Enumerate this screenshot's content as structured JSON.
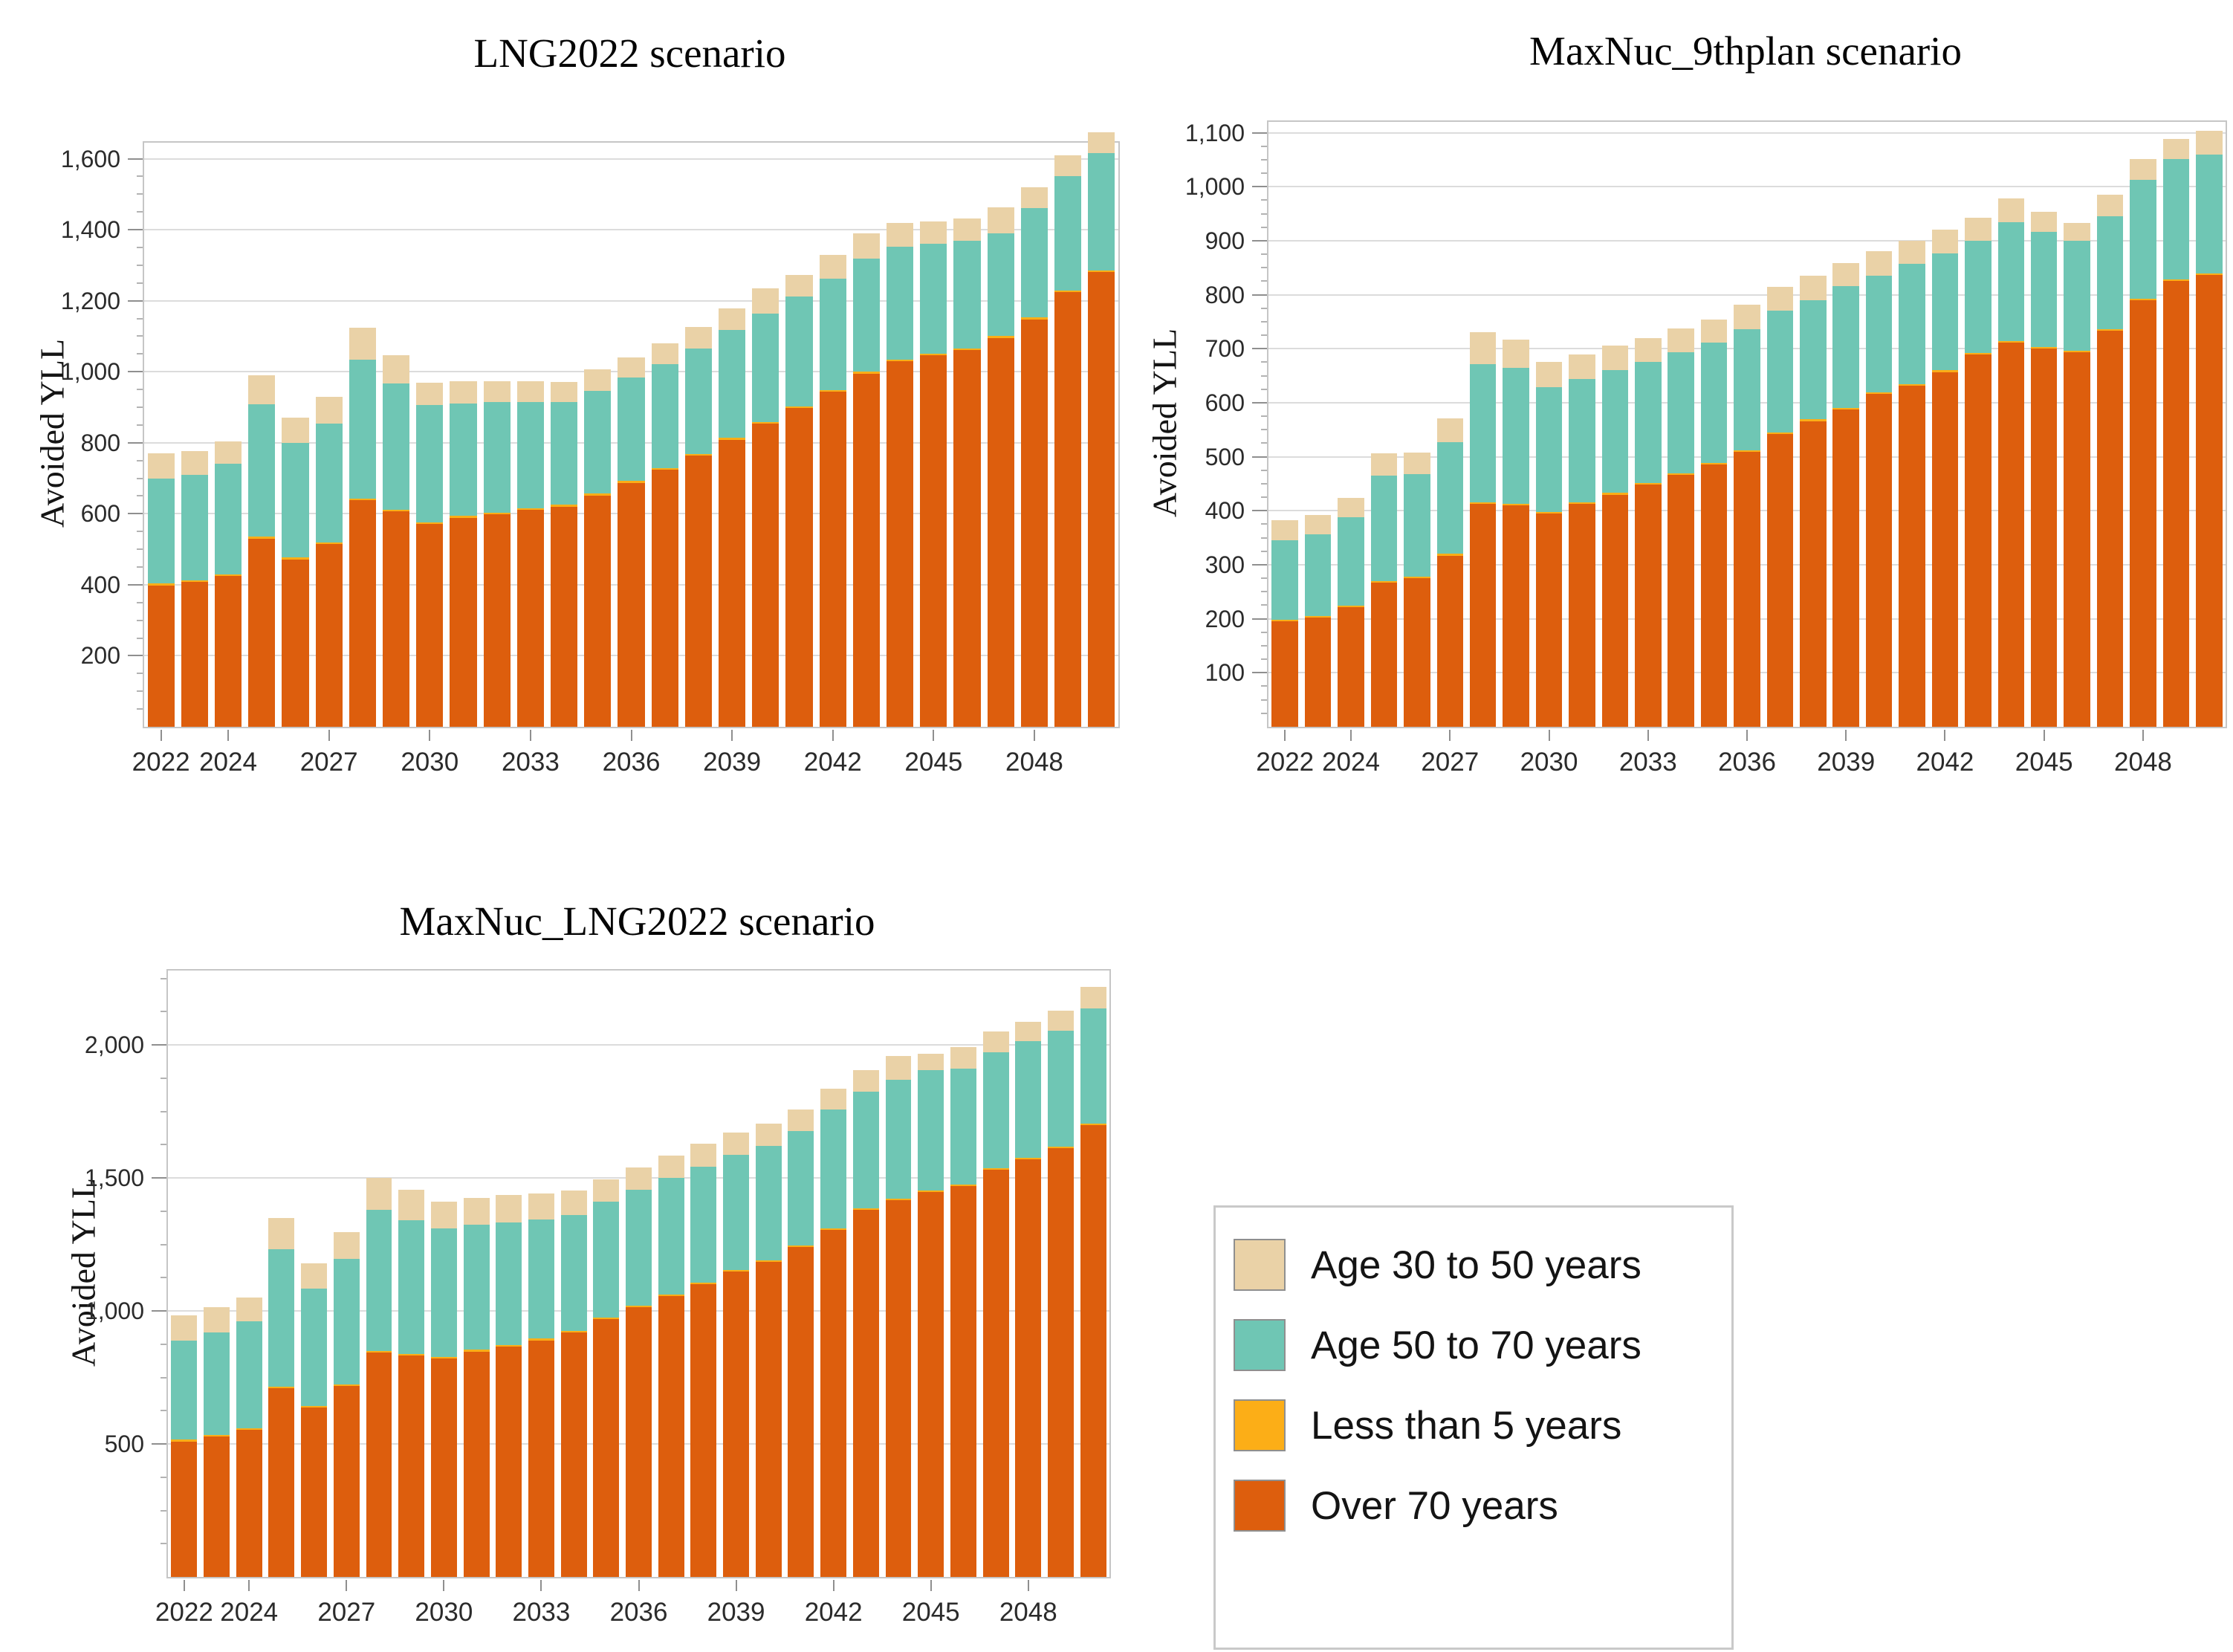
{
  "figure": {
    "background": "#ffffff"
  },
  "legend": {
    "items": [
      {
        "label": "Age 30 to 50 years",
        "color": "#EAD2A7"
      },
      {
        "label": "Age 50 to 70 years",
        "color": "#6FC6B4"
      },
      {
        "label": "Less than 5 years",
        "color": "#FCAE17"
      },
      {
        "label": "Over 70 years",
        "color": "#DD5E0D"
      }
    ]
  },
  "chart_data": [
    {
      "type": "bar",
      "stacked": true,
      "title": "LNG2022 scenario",
      "ylabel": "Avoided YLL",
      "grid": true,
      "legend_position": "none",
      "years": [
        2022,
        2023,
        2024,
        2025,
        2026,
        2027,
        2028,
        2029,
        2030,
        2031,
        2032,
        2033,
        2034,
        2035,
        2036,
        2037,
        2038,
        2039,
        2040,
        2041,
        2042,
        2043,
        2044,
        2045,
        2046,
        2047,
        2048,
        2049,
        2050
      ],
      "xtick_years": [
        2022,
        2024,
        2027,
        2030,
        2033,
        2036,
        2039,
        2042,
        2045,
        2048
      ],
      "ylim": [
        0,
        1645
      ],
      "yticks": [
        200,
        400,
        600,
        800,
        1000,
        1200,
        1400,
        1600
      ],
      "minor_tick_step": 50,
      "series": [
        {
          "name": "Over 70 years",
          "color": "#DD5E0D",
          "values": [
            398,
            408,
            424,
            530,
            472,
            515,
            638,
            606,
            571,
            589,
            598,
            611,
            620,
            652,
            687,
            724,
            763,
            809,
            854,
            898,
            943,
            995,
            1030,
            1046,
            1061,
            1095,
            1148,
            1224,
            1281
          ]
        },
        {
          "name": "Less than 5 years",
          "color": "#FCAE17",
          "values": [
            5,
            5,
            5,
            5,
            5,
            5,
            5,
            5,
            5,
            5,
            5,
            5,
            5,
            5,
            5,
            5,
            5,
            5,
            5,
            5,
            5,
            5,
            5,
            5,
            5,
            5,
            5,
            5,
            5
          ]
        },
        {
          "name": "Age 50 to 70 years",
          "color": "#6FC6B4",
          "values": [
            297,
            297,
            311,
            373,
            323,
            334,
            391,
            355,
            330,
            317,
            311,
            299,
            289,
            289,
            291,
            292,
            297,
            303,
            305,
            308,
            313,
            318,
            317,
            309,
            303,
            290,
            308,
            321,
            330
          ]
        },
        {
          "name": "Age 30 to 50 years",
          "color": "#EAD2A7",
          "values": [
            70,
            67,
            64,
            82,
            71,
            75,
            90,
            81,
            64,
            62,
            60,
            59,
            57,
            61,
            57,
            59,
            61,
            62,
            70,
            61,
            68,
            71,
            67,
            64,
            63,
            73,
            58,
            59,
            58
          ]
        }
      ]
    },
    {
      "type": "bar",
      "stacked": true,
      "title": "MaxNuc_9thplan scenario",
      "ylabel": "Avoided YLL",
      "grid": true,
      "legend_position": "none",
      "years": [
        2022,
        2023,
        2024,
        2025,
        2026,
        2027,
        2028,
        2029,
        2030,
        2031,
        2032,
        2033,
        2034,
        2035,
        2036,
        2037,
        2038,
        2039,
        2040,
        2041,
        2042,
        2043,
        2044,
        2045,
        2046,
        2047,
        2048,
        2049,
        2050
      ],
      "xtick_years": [
        2022,
        2024,
        2027,
        2030,
        2033,
        2036,
        2039,
        2042,
        2045,
        2048
      ],
      "ylim": [
        0,
        1120
      ],
      "yticks": [
        100,
        200,
        300,
        400,
        500,
        600,
        700,
        800,
        900,
        1000,
        1100
      ],
      "minor_tick_step": 25,
      "series": [
        {
          "name": "Over 70 years",
          "color": "#DD5E0D",
          "values": [
            195,
            202,
            222,
            267,
            275,
            317,
            413,
            410,
            395,
            413,
            430,
            448,
            466,
            486,
            509,
            542,
            566,
            587,
            616,
            632,
            657,
            689,
            711,
            700,
            693,
            733,
            790,
            825,
            836
          ]
        },
        {
          "name": "Less than 5 years",
          "color": "#FCAE17",
          "values": [
            3,
            3,
            3,
            3,
            3,
            3,
            3,
            3,
            3,
            3,
            3,
            3,
            3,
            3,
            3,
            3,
            3,
            3,
            3,
            3,
            3,
            3,
            3,
            3,
            3,
            3,
            3,
            3,
            3
          ]
        },
        {
          "name": "Age 50 to 70 years",
          "color": "#6FC6B4",
          "values": [
            147,
            152,
            163,
            195,
            190,
            207,
            256,
            251,
            231,
            228,
            228,
            224,
            224,
            223,
            224,
            225,
            221,
            226,
            216,
            222,
            217,
            208,
            221,
            213,
            204,
            209,
            219,
            223,
            221
          ]
        },
        {
          "name": "Age 30 to 50 years",
          "color": "#EAD2A7",
          "values": [
            37,
            35,
            36,
            41,
            40,
            44,
            59,
            53,
            46,
            46,
            45,
            44,
            44,
            42,
            45,
            45,
            45,
            42,
            45,
            43,
            43,
            43,
            43,
            38,
            33,
            40,
            39,
            38,
            43
          ]
        }
      ]
    },
    {
      "type": "bar",
      "stacked": true,
      "title": "MaxNuc_LNG2022 scenario",
      "ylabel": "Avoided YLL",
      "grid": true,
      "legend_position": "none",
      "years": [
        2022,
        2023,
        2024,
        2025,
        2026,
        2027,
        2028,
        2029,
        2030,
        2031,
        2032,
        2033,
        2034,
        2035,
        2036,
        2037,
        2038,
        2039,
        2040,
        2041,
        2042,
        2043,
        2044,
        2045,
        2046,
        2047,
        2048,
        2049,
        2050
      ],
      "xtick_years": [
        2022,
        2024,
        2027,
        2030,
        2033,
        2036,
        2039,
        2042,
        2045,
        2048
      ],
      "ylim": [
        0,
        2280
      ],
      "yticks": [
        500,
        1000,
        1500,
        2000
      ],
      "minor_tick_step": 125,
      "series": [
        {
          "name": "Over 70 years",
          "color": "#DD5E0D",
          "values": [
            510,
            527,
            552,
            710,
            638,
            718,
            845,
            832,
            822,
            848,
            865,
            890,
            920,
            970,
            1015,
            1056,
            1102,
            1148,
            1185,
            1241,
            1306,
            1380,
            1417,
            1448,
            1469,
            1532,
            1570,
            1611,
            1700
          ]
        },
        {
          "name": "Less than 5 years",
          "color": "#FCAE17",
          "values": [
            6,
            6,
            6,
            6,
            6,
            6,
            6,
            6,
            6,
            6,
            6,
            6,
            6,
            6,
            6,
            6,
            6,
            6,
            6,
            6,
            6,
            6,
            6,
            6,
            6,
            6,
            6,
            6,
            6
          ]
        },
        {
          "name": "Age 50 to 70 years",
          "color": "#6FC6B4",
          "values": [
            374,
            387,
            404,
            516,
            441,
            473,
            529,
            502,
            482,
            471,
            461,
            449,
            434,
            434,
            434,
            438,
            435,
            433,
            429,
            429,
            447,
            438,
            447,
            453,
            436,
            434,
            439,
            438,
            433
          ]
        },
        {
          "name": "Age 30 to 50 years",
          "color": "#EAD2A7",
          "values": [
            95,
            95,
            90,
            118,
            95,
            101,
            120,
            115,
            100,
            100,
            103,
            98,
            92,
            85,
            85,
            84,
            87,
            83,
            84,
            83,
            78,
            83,
            89,
            60,
            83,
            78,
            72,
            75,
            81
          ]
        }
      ]
    }
  ]
}
